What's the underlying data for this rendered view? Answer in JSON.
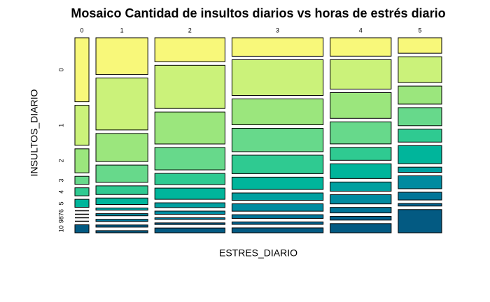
{
  "chart_data": {
    "type": "mosaic",
    "title": "Mosaico Cantidad de insultos diarios vs horas de estrés diario",
    "x_label": "ESTRES_DIARIO",
    "y_label": "INSULTOS_DIARIO",
    "categories": [
      "0",
      "1",
      "2",
      "3",
      "4",
      "5"
    ],
    "rows": [
      "0",
      "1",
      "2",
      "3",
      "4",
      "5",
      "6",
      "7",
      "8",
      "9",
      "10"
    ],
    "colors": [
      "#f8f87a",
      "#cbf27a",
      "#9be67d",
      "#67d98b",
      "#2fca91",
      "#00b59b",
      "#00a0a0",
      "#008ba0",
      "#007598",
      "#00628d",
      "#035a82"
    ],
    "values": [
      [
        8,
        5,
        3,
        1,
        1,
        1,
        0,
        0,
        0,
        0,
        1
      ],
      [
        17,
        24,
        13,
        8,
        4,
        3,
        1,
        1,
        1,
        1,
        1
      ],
      [
        15,
        27,
        20,
        14,
        7,
        7,
        3,
        2,
        1,
        1,
        3
      ],
      [
        15,
        29,
        21,
        19,
        15,
        10,
        6,
        6,
        3,
        2,
        4
      ],
      [
        10,
        16,
        14,
        12,
        7,
        8,
        5,
        5,
        3,
        2,
        5
      ],
      [
        6,
        10,
        7,
        7,
        5,
        7,
        2,
        5,
        3,
        1,
        9
      ]
    ]
  }
}
